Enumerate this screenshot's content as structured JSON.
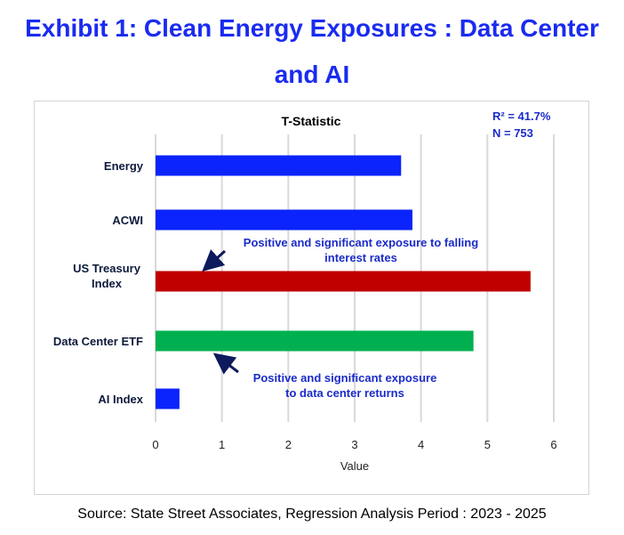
{
  "page_title": "Exhibit 1: Clean Energy Exposures : Data Center and AI",
  "source": "Source: State Street Associates, Regression Analysis Period : 2023 - 2025",
  "chart_data": {
    "type": "bar",
    "orientation": "horizontal",
    "title": "T-Statistic",
    "xlabel": "Value",
    "ylabel": "",
    "xlim": [
      0,
      6
    ],
    "xticks": [
      0,
      1,
      2,
      3,
      4,
      5,
      6
    ],
    "grid": "vertical",
    "categories": [
      "Energy",
      "ACWI",
      "US Treasury Index",
      "Data Center ETF",
      "AI Index"
    ],
    "values": [
      3.7,
      3.87,
      5.65,
      4.79,
      0.36
    ],
    "colors": [
      "#0b24fb",
      "#0b24fb",
      "#c00000",
      "#00b050",
      "#0b24fb"
    ],
    "stats": [
      "R² = 41.7%",
      "N = 753"
    ],
    "annotations": [
      {
        "text_lines": [
          "Positive and significant exposure to falling",
          "interest rates"
        ],
        "target": "US Treasury Index"
      },
      {
        "text_lines": [
          "Positive and significant exposure",
          "to data center returns"
        ],
        "target": "Data Center ETF"
      }
    ],
    "annotation_color": "#1a2bc8",
    "arrow_color": "#0d1a5c"
  }
}
